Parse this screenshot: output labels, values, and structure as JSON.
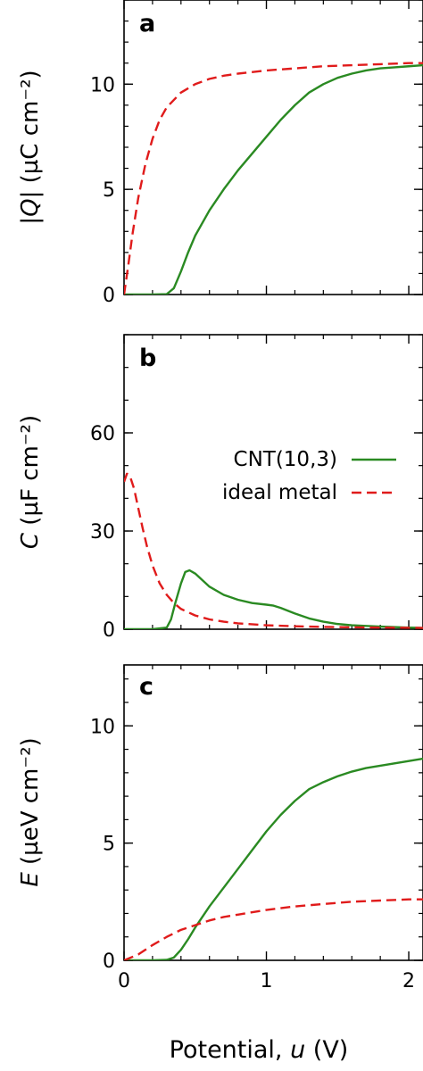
{
  "colors": {
    "cnt": "#2a8a22",
    "metal": "#e01b1b"
  },
  "x_axis": {
    "label": "Potential, u (V)",
    "label_prefix": "Potential, ",
    "label_var": "u",
    "label_suffix": " (V)",
    "ticks": [
      "0",
      "1",
      "2"
    ],
    "tick_values": [
      0,
      1,
      2
    ],
    "xlim": [
      0,
      2.1
    ]
  },
  "legend": {
    "cnt": "CNT(10,3)",
    "metal": "ideal metal"
  },
  "panels": [
    {
      "letter": "a",
      "ylabel": "|Q| (µC cm⁻²)",
      "ylabel_var": "|Q|",
      "ylabel_unit": " (µC cm⁻²)",
      "ticks": [
        "0",
        "5",
        "10"
      ],
      "tick_values": [
        0,
        5,
        10
      ],
      "minor_step": 1,
      "ylim": [
        0,
        14
      ]
    },
    {
      "letter": "b",
      "ylabel": "C (µF cm⁻²)",
      "ylabel_var": "C",
      "ylabel_unit": " (µF cm⁻²)",
      "ticks": [
        "0",
        "30",
        "60"
      ],
      "tick_values": [
        0,
        30,
        60
      ],
      "minor_step": 10,
      "ylim": [
        0,
        90
      ]
    },
    {
      "letter": "c",
      "ylabel": "E (µeV cm⁻²)",
      "ylabel_var": "E",
      "ylabel_unit": " (µeV cm⁻²)",
      "ticks": [
        "0",
        "5",
        "10"
      ],
      "tick_values": [
        0,
        5,
        10
      ],
      "minor_step": 1,
      "ylim": [
        0,
        12.6
      ]
    }
  ],
  "chart_data": [
    {
      "type": "line",
      "panel": "a",
      "ylabel": "|Q| (µC cm⁻²)",
      "xlabel": "Potential, u (V)",
      "xlim": [
        0,
        2.1
      ],
      "ylim": [
        0,
        14
      ],
      "series": [
        {
          "name": "CNT(10,3)",
          "style": "solid",
          "x": [
            0,
            0.1,
            0.2,
            0.3,
            0.35,
            0.4,
            0.45,
            0.5,
            0.6,
            0.7,
            0.8,
            0.9,
            1.0,
            1.1,
            1.2,
            1.3,
            1.4,
            1.5,
            1.6,
            1.7,
            1.8,
            1.9,
            2.0,
            2.1
          ],
          "y": [
            0,
            0,
            0,
            0.02,
            0.3,
            1.1,
            2.0,
            2.8,
            4.0,
            5.0,
            5.9,
            6.7,
            7.5,
            8.3,
            9.0,
            9.6,
            10.0,
            10.3,
            10.5,
            10.65,
            10.75,
            10.8,
            10.85,
            10.9
          ]
        },
        {
          "name": "ideal metal",
          "style": "dashed",
          "x": [
            0,
            0.03,
            0.06,
            0.1,
            0.15,
            0.2,
            0.25,
            0.3,
            0.4,
            0.5,
            0.6,
            0.7,
            0.8,
            1.0,
            1.2,
            1.4,
            1.6,
            1.8,
            2.0,
            2.1
          ],
          "y": [
            0,
            1.4,
            2.9,
            4.6,
            6.2,
            7.4,
            8.3,
            8.9,
            9.6,
            10.0,
            10.25,
            10.4,
            10.5,
            10.65,
            10.75,
            10.85,
            10.9,
            10.95,
            11.0,
            11.0
          ]
        }
      ]
    },
    {
      "type": "line",
      "panel": "b",
      "ylabel": "C (µF cm⁻²)",
      "xlabel": "Potential, u (V)",
      "xlim": [
        0,
        2.1
      ],
      "ylim": [
        0,
        90
      ],
      "series": [
        {
          "name": "CNT(10,3)",
          "style": "solid",
          "x": [
            0,
            0.2,
            0.3,
            0.33,
            0.36,
            0.4,
            0.43,
            0.46,
            0.5,
            0.55,
            0.6,
            0.7,
            0.8,
            0.9,
            1.0,
            1.05,
            1.1,
            1.2,
            1.3,
            1.4,
            1.5,
            1.6,
            1.8,
            2.0,
            2.1
          ],
          "y": [
            0,
            0,
            0.5,
            3,
            8,
            14,
            17.5,
            18,
            17,
            15,
            13,
            10.5,
            9,
            8,
            7.5,
            7.2,
            6.5,
            4.8,
            3.3,
            2.3,
            1.6,
            1.2,
            0.8,
            0.5,
            0.4
          ]
        },
        {
          "name": "ideal metal",
          "style": "dashed",
          "x": [
            0,
            0.02,
            0.04,
            0.07,
            0.1,
            0.13,
            0.16,
            0.2,
            0.25,
            0.3,
            0.35,
            0.4,
            0.5,
            0.6,
            0.7,
            0.8,
            1.0,
            1.2,
            1.4,
            1.6,
            1.8,
            2.1
          ],
          "y": [
            45,
            47.5,
            47,
            43,
            37,
            31,
            25.5,
            19.5,
            14,
            10.5,
            8,
            6.2,
            4.2,
            3.0,
            2.3,
            1.8,
            1.2,
            0.9,
            0.7,
            0.6,
            0.5,
            0.4
          ]
        }
      ]
    },
    {
      "type": "line",
      "panel": "c",
      "ylabel": "E (µeV cm⁻²)",
      "xlabel": "Potential, u (V)",
      "xlim": [
        0,
        2.1
      ],
      "ylim": [
        0,
        12.6
      ],
      "series": [
        {
          "name": "CNT(10,3)",
          "style": "solid",
          "x": [
            0,
            0.2,
            0.3,
            0.35,
            0.4,
            0.45,
            0.5,
            0.6,
            0.7,
            0.8,
            0.9,
            1.0,
            1.1,
            1.2,
            1.3,
            1.4,
            1.5,
            1.6,
            1.7,
            1.8,
            1.9,
            2.0,
            2.1
          ],
          "y": [
            0,
            0,
            0.02,
            0.12,
            0.45,
            0.9,
            1.4,
            2.3,
            3.1,
            3.9,
            4.7,
            5.5,
            6.2,
            6.8,
            7.3,
            7.6,
            7.85,
            8.05,
            8.2,
            8.3,
            8.4,
            8.5,
            8.6
          ]
        },
        {
          "name": "ideal metal",
          "style": "dashed",
          "x": [
            0,
            0.1,
            0.2,
            0.3,
            0.4,
            0.5,
            0.6,
            0.7,
            0.8,
            1.0,
            1.2,
            1.4,
            1.6,
            1.8,
            2.0,
            2.1
          ],
          "y": [
            0,
            0.25,
            0.65,
            1.0,
            1.3,
            1.5,
            1.7,
            1.85,
            1.95,
            2.15,
            2.3,
            2.4,
            2.5,
            2.55,
            2.6,
            2.6
          ]
        }
      ]
    }
  ]
}
